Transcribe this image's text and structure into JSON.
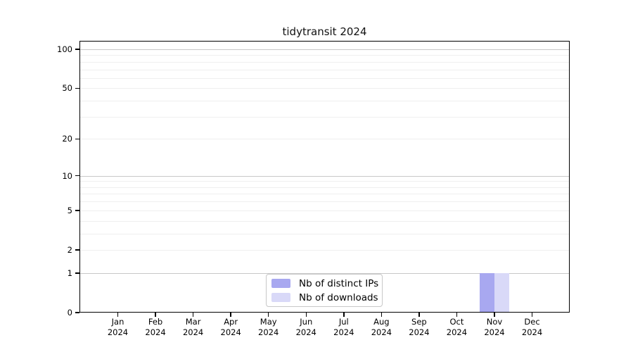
{
  "title": "tidytransit 2024",
  "legend": {
    "items": [
      {
        "label": "Nb of distinct IPs",
        "color": "#a8a8f0"
      },
      {
        "label": "Nb of downloads",
        "color": "#d9d9f8"
      }
    ]
  },
  "chart_data": {
    "type": "bar",
    "title": "tidytransit 2024",
    "categories": [
      {
        "month": "Jan",
        "year": "2024"
      },
      {
        "month": "Feb",
        "year": "2024"
      },
      {
        "month": "Mar",
        "year": "2024"
      },
      {
        "month": "Apr",
        "year": "2024"
      },
      {
        "month": "May",
        "year": "2024"
      },
      {
        "month": "Jun",
        "year": "2024"
      },
      {
        "month": "Jul",
        "year": "2024"
      },
      {
        "month": "Aug",
        "year": "2024"
      },
      {
        "month": "Sep",
        "year": "2024"
      },
      {
        "month": "Oct",
        "year": "2024"
      },
      {
        "month": "Nov",
        "year": "2024"
      },
      {
        "month": "Dec",
        "year": "2024"
      }
    ],
    "series": [
      {
        "name": "Nb of distinct IPs",
        "color": "#a8a8f0",
        "values": [
          0,
          0,
          0,
          0,
          0,
          0,
          0,
          0,
          0,
          0,
          1,
          0
        ]
      },
      {
        "name": "Nb of downloads",
        "color": "#d9d9f8",
        "values": [
          0,
          0,
          0,
          0,
          0,
          0,
          0,
          0,
          0,
          0,
          1,
          0
        ]
      }
    ],
    "yscale": "log1p",
    "ylim": [
      0,
      115
    ],
    "y_ticks": [
      0,
      1,
      2,
      5,
      10,
      20,
      50,
      100
    ],
    "y_grid_major": [
      1,
      10,
      100
    ],
    "y_grid_minor": [
      2,
      3,
      4,
      5,
      6,
      7,
      8,
      9,
      20,
      30,
      40,
      50,
      60,
      70,
      80,
      90
    ],
    "grid": true,
    "legend_position": "bottom-center",
    "xlabel": "",
    "ylabel": ""
  },
  "colors": {
    "bar_distinct_ips": "#a8a8f0",
    "bar_downloads": "#d9d9f8",
    "grid_major": "#c8c8c8",
    "grid_minor": "#efefef",
    "axis": "#000000",
    "background": "#ffffff"
  }
}
